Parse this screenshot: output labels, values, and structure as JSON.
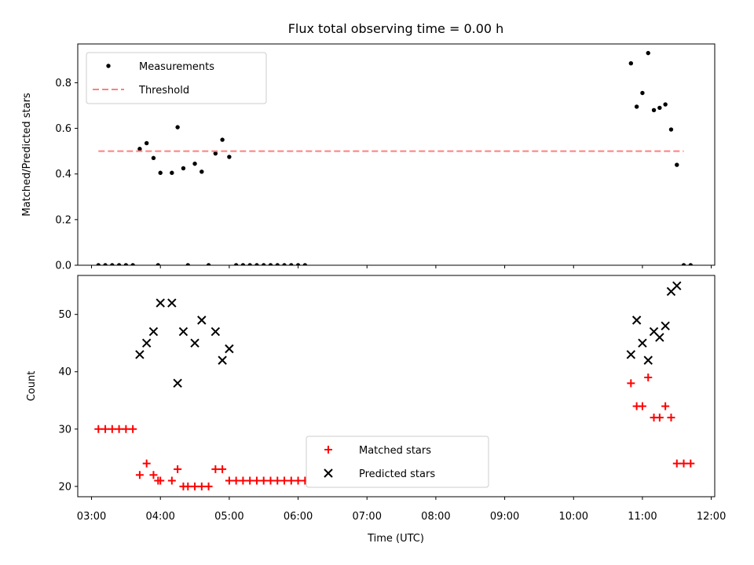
{
  "chart_data": {
    "title": "Flux total observing time = 0.00 h",
    "xlabel": "Time (UTC)",
    "xlim": [
      "02:48",
      "12:03"
    ],
    "xticks": [
      "03:00",
      "04:00",
      "05:00",
      "06:00",
      "07:00",
      "08:00",
      "09:00",
      "10:00",
      "11:00",
      "12:00"
    ],
    "panels": [
      {
        "type": "scatter",
        "ylabel": "Matched/Predicted stars",
        "ylim": [
          0,
          0.97
        ],
        "yticks": [
          "0.0",
          "0.2",
          "0.4",
          "0.6",
          "0.8"
        ],
        "yticks_values": [
          0,
          0.2,
          0.4,
          0.6,
          0.8
        ],
        "legend_position": "upper-left",
        "series": [
          {
            "name": "Measurements",
            "marker": "dot",
            "color": "#000000",
            "points": [
              [
                "03:06",
                0
              ],
              [
                "03:12",
                0
              ],
              [
                "03:18",
                0
              ],
              [
                "03:24",
                0
              ],
              [
                "03:30",
                0
              ],
              [
                "03:36",
                0
              ],
              [
                "03:42",
                0.51
              ],
              [
                "03:48",
                0.535
              ],
              [
                "03:54",
                0.47
              ],
              [
                "04:00",
                0.405
              ],
              [
                "03:58",
                0
              ],
              [
                "04:10",
                0.405
              ],
              [
                "04:15",
                0.605
              ],
              [
                "04:20",
                0.425
              ],
              [
                "04:24",
                0
              ],
              [
                "04:30",
                0.445
              ],
              [
                "04:36",
                0.41
              ],
              [
                "04:42",
                0
              ],
              [
                "04:48",
                0.49
              ],
              [
                "04:54",
                0.55
              ],
              [
                "05:00",
                0.475
              ],
              [
                "05:06",
                0
              ],
              [
                "05:12",
                0
              ],
              [
                "05:18",
                0
              ],
              [
                "05:24",
                0
              ],
              [
                "05:30",
                0
              ],
              [
                "05:36",
                0
              ],
              [
                "05:42",
                0
              ],
              [
                "05:48",
                0
              ],
              [
                "05:54",
                0
              ],
              [
                "06:00",
                0
              ],
              [
                "06:06",
                0
              ],
              [
                "10:50",
                0.885
              ],
              [
                "10:55",
                0.695
              ],
              [
                "11:00",
                0.755
              ],
              [
                "11:05",
                0.93
              ],
              [
                "11:10",
                0.68
              ],
              [
                "11:15",
                0.69
              ],
              [
                "11:20",
                0.705
              ],
              [
                "11:25",
                0.595
              ],
              [
                "11:30",
                0.44
              ],
              [
                "11:36",
                0
              ],
              [
                "11:42",
                0
              ]
            ]
          },
          {
            "name": "Threshold",
            "type": "line",
            "style": "dashed",
            "color": "#ff7f7f",
            "points": [
              [
                "03:06",
                0.5
              ],
              [
                "11:36",
                0.5
              ]
            ]
          }
        ]
      },
      {
        "type": "scatter",
        "ylabel": "Count",
        "ylim": [
          18.2,
          56.8
        ],
        "yticks": [
          "20",
          "30",
          "40",
          "50"
        ],
        "yticks_values": [
          20,
          30,
          40,
          50
        ],
        "legend_position": "lower-center",
        "series": [
          {
            "name": "Matched stars",
            "marker": "plus",
            "color": "#ff0000",
            "points": [
              [
                "03:06",
                30
              ],
              [
                "03:12",
                30
              ],
              [
                "03:18",
                30
              ],
              [
                "03:24",
                30
              ],
              [
                "03:30",
                30
              ],
              [
                "03:36",
                30
              ],
              [
                "03:42",
                22
              ],
              [
                "03:48",
                24
              ],
              [
                "03:54",
                22
              ],
              [
                "04:00",
                21
              ],
              [
                "03:58",
                21
              ],
              [
                "04:10",
                21
              ],
              [
                "04:15",
                23
              ],
              [
                "04:20",
                20
              ],
              [
                "04:24",
                20
              ],
              [
                "04:30",
                20
              ],
              [
                "04:36",
                20
              ],
              [
                "04:42",
                20
              ],
              [
                "04:48",
                23
              ],
              [
                "04:54",
                23
              ],
              [
                "05:00",
                21
              ],
              [
                "05:06",
                21
              ],
              [
                "05:12",
                21
              ],
              [
                "05:18",
                21
              ],
              [
                "05:24",
                21
              ],
              [
                "05:30",
                21
              ],
              [
                "05:36",
                21
              ],
              [
                "05:42",
                21
              ],
              [
                "05:48",
                21
              ],
              [
                "05:54",
                21
              ],
              [
                "06:00",
                21
              ],
              [
                "06:06",
                21
              ],
              [
                "10:50",
                38
              ],
              [
                "10:55",
                34
              ],
              [
                "11:00",
                34
              ],
              [
                "11:05",
                39
              ],
              [
                "11:10",
                32
              ],
              [
                "11:15",
                32
              ],
              [
                "11:20",
                34
              ],
              [
                "11:25",
                32
              ],
              [
                "11:30",
                24
              ],
              [
                "11:36",
                24
              ],
              [
                "11:42",
                24
              ]
            ]
          },
          {
            "name": "Predicted stars",
            "marker": "x",
            "color": "#000000",
            "points": [
              [
                "03:42",
                43
              ],
              [
                "03:48",
                45
              ],
              [
                "03:54",
                47
              ],
              [
                "04:00",
                52
              ],
              [
                "04:10",
                52
              ],
              [
                "04:15",
                38
              ],
              [
                "04:20",
                47
              ],
              [
                "04:30",
                45
              ],
              [
                "04:36",
                49
              ],
              [
                "04:48",
                47
              ],
              [
                "04:54",
                42
              ],
              [
                "05:00",
                44
              ],
              [
                "10:50",
                43
              ],
              [
                "10:55",
                49
              ],
              [
                "11:00",
                45
              ],
              [
                "11:05",
                42
              ],
              [
                "11:10",
                47
              ],
              [
                "11:15",
                46
              ],
              [
                "11:20",
                48
              ],
              [
                "11:25",
                54
              ],
              [
                "11:30",
                55
              ]
            ]
          }
        ]
      }
    ]
  }
}
